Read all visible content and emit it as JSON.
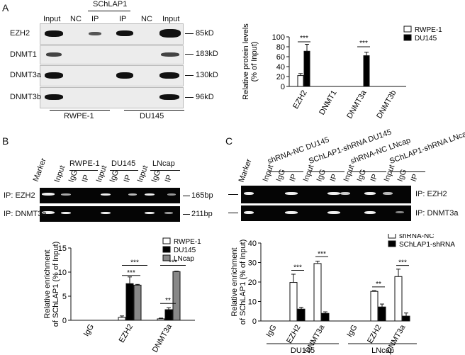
{
  "panel_a": {
    "letter": "A",
    "group_label": "SChLAP1",
    "lanes": [
      "Input",
      "NC",
      "IP",
      "IP",
      "NC",
      "Input"
    ],
    "rows": [
      {
        "name": "EZH2",
        "size": "85kD"
      },
      {
        "name": "DNMT1",
        "size": "183kD"
      },
      {
        "name": "DNMT3a",
        "size": "130kD"
      },
      {
        "name": "DNMT3b",
        "size": "96kD"
      }
    ],
    "cell_lines": [
      "RWPE-1",
      "DU145"
    ]
  },
  "panel_b": {
    "letter": "B",
    "marker": "Marker",
    "groups": [
      "RWPE-1",
      "DU145",
      "LNcap"
    ],
    "lanes": [
      "Input",
      "IgG",
      "IP",
      "Input",
      "IgG",
      "IP",
      "Input",
      "IgG",
      "IP"
    ],
    "rows": [
      {
        "name": "IP: EZH2",
        "size": "165bp"
      },
      {
        "name": "IP: DNMT3a",
        "size": "211bp"
      }
    ]
  },
  "panel_c": {
    "letter": "C",
    "marker": "Marker",
    "groups": [
      "shRNA-NC DU145",
      "SChLAP1-shRNA DU145",
      "shRNA-NC LNcap",
      "SChLAP1-shRNA LNcap"
    ],
    "lanes": [
      "Input",
      "IgG",
      "IP",
      "Input",
      "IgG",
      "IP",
      "Input",
      "IgG",
      "IP",
      "Input",
      "IgG",
      "IP"
    ],
    "rows": [
      {
        "name": "IP: EZH2"
      },
      {
        "name": "IP: DNMT3a"
      }
    ]
  },
  "chart_data": [
    {
      "type": "bar",
      "ylabel": "Relative protein levels (% of Input)",
      "ylim": [
        0,
        100
      ],
      "yticks": [
        0,
        20,
        40,
        60,
        80,
        100
      ],
      "categories": [
        "EZH2",
        "DNMT1",
        "DNMT3a",
        "DNMT3b"
      ],
      "series": [
        {
          "name": "RWPE-1",
          "color": "#ffffff",
          "values": [
            22,
            0,
            0,
            0
          ],
          "errors": [
            4,
            0,
            0,
            0
          ]
        },
        {
          "name": "DU145",
          "color": "#000000",
          "values": [
            71,
            0,
            62,
            0
          ],
          "errors": [
            14,
            0,
            7,
            0
          ]
        }
      ],
      "annotations": [
        "***",
        "***"
      ],
      "legend": "top-right"
    },
    {
      "type": "bar",
      "ylabel": "Relative enrichment of SChLAP1 (% of Input)",
      "ylim": [
        0,
        15
      ],
      "yticks": [
        0,
        5,
        10,
        15
      ],
      "categories": [
        "IgG",
        "EZH2",
        "DNMT3a"
      ],
      "series": [
        {
          "name": "RWPE-1",
          "color": "#ffffff",
          "values": [
            0,
            0.6,
            0.3
          ],
          "errors": [
            0,
            0.3,
            0.15
          ]
        },
        {
          "name": "DU145",
          "color": "#000000",
          "values": [
            0,
            7.6,
            2.2
          ],
          "errors": [
            0,
            1.4,
            0.4
          ]
        },
        {
          "name": "LNcap",
          "color": "#888888",
          "values": [
            0,
            7.3,
            10.1
          ],
          "errors": [
            0,
            0.15,
            0.1
          ]
        }
      ],
      "annotations": [
        "***",
        "***",
        "***",
        "**"
      ],
      "legend": "top-right"
    },
    {
      "type": "bar",
      "ylabel": "Relative enrichment of SChLAP1 (% of Input)",
      "ylim": [
        0,
        40
      ],
      "yticks": [
        0,
        10,
        20,
        30,
        40
      ],
      "categories": [
        "IgG",
        "EZH2",
        "DNMT3a",
        "IgG",
        "EZH2",
        "DNMT3a"
      ],
      "groups": [
        "DU145",
        "LNcap"
      ],
      "series": [
        {
          "name": "shRNA-NC",
          "color": "#ffffff",
          "values": [
            0,
            19.8,
            29.5,
            0,
            15.2,
            22.8
          ],
          "errors": [
            0,
            4.2,
            1.2,
            0,
            0.4,
            3.8
          ]
        },
        {
          "name": "SChLAP1-shRNA",
          "color": "#000000",
          "values": [
            0,
            6.1,
            3.9,
            0,
            7.2,
            2.5
          ],
          "errors": [
            0,
            0.9,
            0.8,
            0,
            1.5,
            1.6
          ]
        }
      ],
      "annotations": [
        "***",
        "***",
        "**",
        "***"
      ],
      "legend": "top-right"
    }
  ]
}
